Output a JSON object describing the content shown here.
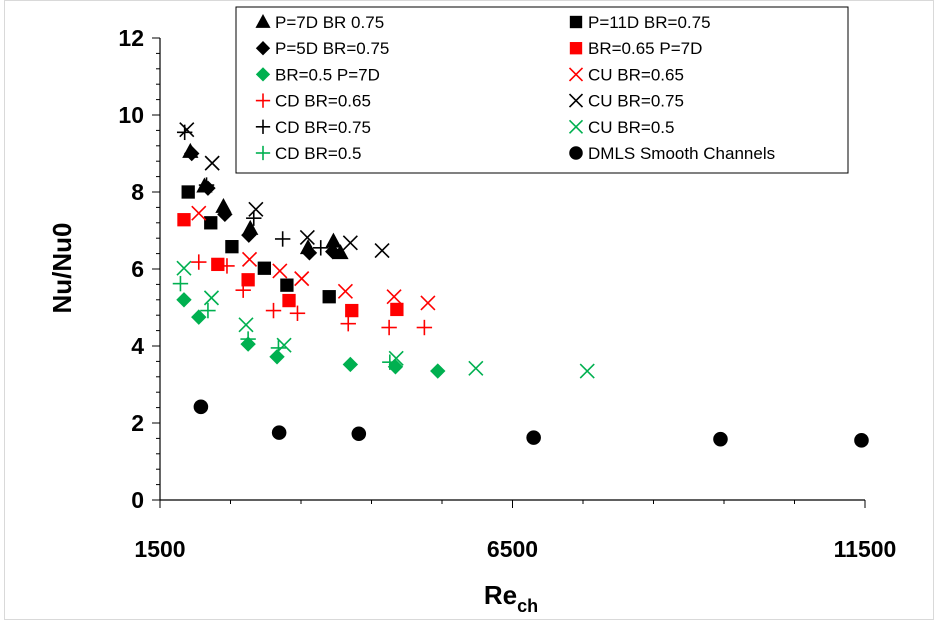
{
  "chart_data": {
    "type": "scatter",
    "xlabel": "Re",
    "xlabel_sub": "ch",
    "ylabel": "Nu/Nu0",
    "xlim": [
      1500,
      11500
    ],
    "ylim": [
      0,
      12
    ],
    "x_ticks": [
      "1500",
      "6500",
      "11500"
    ],
    "y_ticks": [
      "0",
      "2",
      "4",
      "6",
      "8",
      "10",
      "12"
    ],
    "grid": false,
    "legend_position": "top-center",
    "series": [
      {
        "name": "P=7D BR 0.75",
        "marker": "triangle",
        "color": "#000000",
        "points": [
          [
            1930,
            9.05
          ],
          [
            2130,
            8.15
          ],
          [
            2400,
            7.62
          ],
          [
            2780,
            7.05
          ],
          [
            3600,
            6.55
          ],
          [
            3960,
            6.72
          ],
          [
            4060,
            6.42
          ]
        ]
      },
      {
        "name": "P=11D BR=0.75",
        "marker": "square",
        "color": "#000000",
        "points": [
          [
            1900,
            8.0
          ],
          [
            2220,
            7.2
          ],
          [
            2520,
            6.58
          ],
          [
            2980,
            6.02
          ],
          [
            3300,
            5.58
          ],
          [
            3900,
            5.28
          ]
        ]
      },
      {
        "name": "P=5D BR=0.75",
        "marker": "diamond",
        "color": "#000000",
        "points": [
          [
            1950,
            9.0
          ],
          [
            2180,
            8.1
          ],
          [
            2420,
            7.42
          ],
          [
            2760,
            6.88
          ],
          [
            3620,
            6.42
          ],
          [
            3950,
            6.45
          ]
        ]
      },
      {
        "name": "BR=0.65 P=7D",
        "marker": "square",
        "color": "#ff0000",
        "points": [
          [
            1840,
            7.28
          ],
          [
            2320,
            6.12
          ],
          [
            2750,
            5.72
          ],
          [
            3330,
            5.18
          ],
          [
            4220,
            4.92
          ],
          [
            4860,
            4.95
          ]
        ]
      },
      {
        "name": "BR=0.5 P=7D",
        "marker": "diamond",
        "color": "#00b050",
        "points": [
          [
            1840,
            5.2
          ],
          [
            2050,
            4.75
          ],
          [
            2750,
            4.05
          ],
          [
            3160,
            3.72
          ],
          [
            4200,
            3.52
          ],
          [
            4840,
            3.46
          ],
          [
            5440,
            3.35
          ]
        ]
      },
      {
        "name": "CU BR=0.65",
        "marker": "x",
        "color": "#ff0000",
        "points": [
          [
            2050,
            7.45
          ],
          [
            2770,
            6.25
          ],
          [
            3200,
            5.95
          ],
          [
            3510,
            5.75
          ],
          [
            4130,
            5.42
          ],
          [
            4820,
            5.28
          ],
          [
            5300,
            5.12
          ]
        ]
      },
      {
        "name": "CD BR=0.65",
        "marker": "plus",
        "color": "#ff0000",
        "points": [
          [
            2050,
            6.18
          ],
          [
            2450,
            6.08
          ],
          [
            2680,
            5.45
          ],
          [
            3110,
            4.92
          ],
          [
            3450,
            4.85
          ],
          [
            4170,
            4.58
          ],
          [
            4750,
            4.48
          ],
          [
            5250,
            4.48
          ]
        ]
      },
      {
        "name": "CU BR=0.75",
        "marker": "x",
        "color": "#000000",
        "points": [
          [
            1880,
            9.62
          ],
          [
            2240,
            8.75
          ],
          [
            2860,
            7.55
          ],
          [
            3590,
            6.82
          ],
          [
            4200,
            6.68
          ],
          [
            4650,
            6.48
          ]
        ]
      },
      {
        "name": "CD BR=0.75",
        "marker": "plus",
        "color": "#000000",
        "points": [
          [
            1850,
            9.55
          ],
          [
            2160,
            8.18
          ],
          [
            2830,
            7.32
          ],
          [
            3240,
            6.78
          ],
          [
            3780,
            6.55
          ]
        ]
      },
      {
        "name": "CU BR=0.5",
        "marker": "x",
        "color": "#00b050",
        "points": [
          [
            1840,
            6.02
          ],
          [
            2230,
            5.25
          ],
          [
            2720,
            4.55
          ],
          [
            3260,
            4.02
          ],
          [
            4850,
            3.68
          ],
          [
            5980,
            3.42
          ],
          [
            7560,
            3.35
          ]
        ]
      },
      {
        "name": "CD BR=0.5",
        "marker": "plus",
        "color": "#00b050",
        "points": [
          [
            1790,
            5.62
          ],
          [
            2180,
            4.92
          ],
          [
            2750,
            4.18
          ],
          [
            3180,
            3.95
          ],
          [
            4760,
            3.58
          ]
        ]
      },
      {
        "name": "DMLS Smooth Channels",
        "marker": "circle",
        "color": "#000000",
        "points": [
          [
            2080,
            2.42
          ],
          [
            3190,
            1.75
          ],
          [
            4320,
            1.72
          ],
          [
            6800,
            1.62
          ],
          [
            9450,
            1.58
          ],
          [
            11450,
            1.55
          ]
        ]
      }
    ]
  }
}
